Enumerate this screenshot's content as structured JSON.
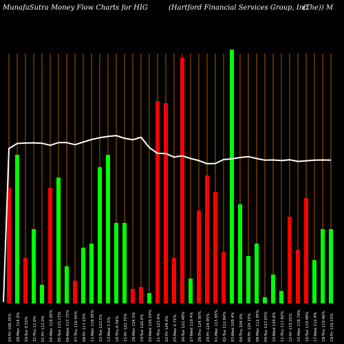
{
  "header": {
    "left": "MunafaSutra  Money Flow  Charts for HIG",
    "middle": "(Hartford Financial Services Group, Inc.",
    "right": "(The)) M"
  },
  "colors": {
    "background": "#000000",
    "up": "#00ff00",
    "down": "#ff0000",
    "grid": "#b35900",
    "line": "#ffffff",
    "text": "#ffffff"
  },
  "chart_data": {
    "type": "bar",
    "bar_values": [
      56,
      72,
      22,
      36,
      9,
      56,
      61,
      18,
      11,
      27,
      29,
      66,
      72,
      39,
      39,
      7,
      8,
      5,
      98,
      97,
      22,
      119,
      12,
      45,
      62,
      54,
      25,
      123,
      48,
      23,
      29,
      3,
      14,
      6,
      42,
      26,
      51,
      21,
      36,
      36
    ],
    "bar_colors": [
      "red",
      "green",
      "red",
      "green",
      "green",
      "red",
      "green",
      "green",
      "red",
      "green",
      "green",
      "green",
      "green",
      "green",
      "green",
      "red",
      "red",
      "green",
      "red",
      "red",
      "red",
      "red",
      "green",
      "red",
      "red",
      "red",
      "red",
      "green",
      "green",
      "green",
      "green",
      "green",
      "green",
      "green",
      "red",
      "red",
      "red",
      "green",
      "green",
      "green"
    ],
    "line_values": [
      75,
      77.5,
      77.7,
      77.8,
      77.6,
      76.6,
      77.9,
      77.9,
      76.9,
      78.2,
      79.4,
      80.3,
      80.9,
      81.3,
      80.0,
      79.3,
      80.5,
      75.5,
      72.7,
      72.6,
      70.9,
      71.5,
      70.2,
      69.2,
      67.7,
      67.8,
      69.7,
      70.0,
      70.7,
      71.1,
      70.2,
      69.4,
      69.5,
      69.2,
      69.6,
      68.8,
      69.1,
      69.4,
      69.5,
      69.4
    ],
    "x_labels": [
      "24-Fri 108.35%",
      "28-Mon 114.0%",
      "29-Tue 0.55%",
      "31-Thu 11.0%",
      "01-Fri 112.0%",
      "04-Mon 118.95%",
      "05-Tue 115.15%",
      "06-Wed 117.75%",
      "07-Thu 116.45%",
      "08-Fri 117.23%",
      "11-Mon 118.95%",
      "12-Tue 122.5%",
      "13-Wed 1.5%",
      "14-Thu 6.56%",
      "15-Fri 122.75%",
      "18-Mon 124.5%",
      "19-Tue 126.0%",
      "20-Wed 126.54%",
      "21-Thu 123.6%",
      "22-Fri 124.6%",
      "25-Mon 0.75%",
      "26-Tue 122.48%",
      "27-Wed 119.4%",
      "28-Thu 124.95%",
      "29-Fri 124.95%",
      "01-Mon 115.95%",
      "02-Tue 112.84%",
      "03-Wed 108.4%",
      "04-Thu 104.0%",
      "05-Fri 124.15%",
      "08-Mon 112.95%",
      "09-Tue 127.05%",
      "10-Wed 124.6%",
      "11-Thu 117.92%",
      "12-Fri 119.25%",
      "15-Mon 118.79%",
      "16-Tue 119.48%",
      "17-Wed 112.4%",
      "18-Thu 119.46%",
      "19-Fri 116.15%"
    ],
    "xlabel": "",
    "ylabel": "",
    "title": "",
    "grid": true
  }
}
